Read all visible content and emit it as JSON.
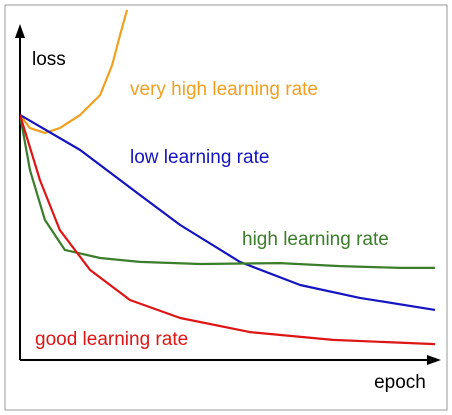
{
  "chart_data": {
    "type": "line",
    "x_label": "epoch",
    "y_label": "loss",
    "xlim": [
      0,
      100
    ],
    "ylim": [
      0,
      117
    ],
    "series": [
      {
        "name": "very high learning rate",
        "color": "#f0a020",
        "x": [
          0,
          2.4,
          6,
          9.6,
          14.5,
          19.3,
          22.2,
          24.1,
          25.8
        ],
        "values": [
          81.7,
          77.3,
          75.7,
          77.3,
          81.7,
          88.3,
          98.3,
          108.3,
          116.7
        ]
      },
      {
        "name": "low learning rate",
        "color": "#1414c0",
        "x": [
          0,
          14.5,
          28.9,
          38.6,
          53,
          67.5,
          81.9,
          100
        ],
        "values": [
          81.7,
          70,
          55,
          45,
          32.7,
          25,
          20.7,
          16.7
        ]
      },
      {
        "name": "high learning rate",
        "color": "#3a7d2a",
        "x": [
          0,
          2.4,
          6,
          10.8,
          19.3,
          28.9,
          43.4,
          62.7,
          77.1,
          91.6,
          100
        ],
        "values": [
          81.7,
          63.3,
          46.7,
          36.7,
          34,
          32.7,
          32,
          32.3,
          31.3,
          30.7,
          30.7
        ]
      },
      {
        "name": "good learning rate",
        "color": "#dd1515",
        "x": [
          0,
          4.8,
          9.6,
          16.9,
          26.5,
          38.6,
          55.4,
          75.4,
          100
        ],
        "values": [
          81.7,
          60,
          43.3,
          30,
          20,
          14,
          9.3,
          6.7,
          5.3
        ]
      }
    ]
  }
}
